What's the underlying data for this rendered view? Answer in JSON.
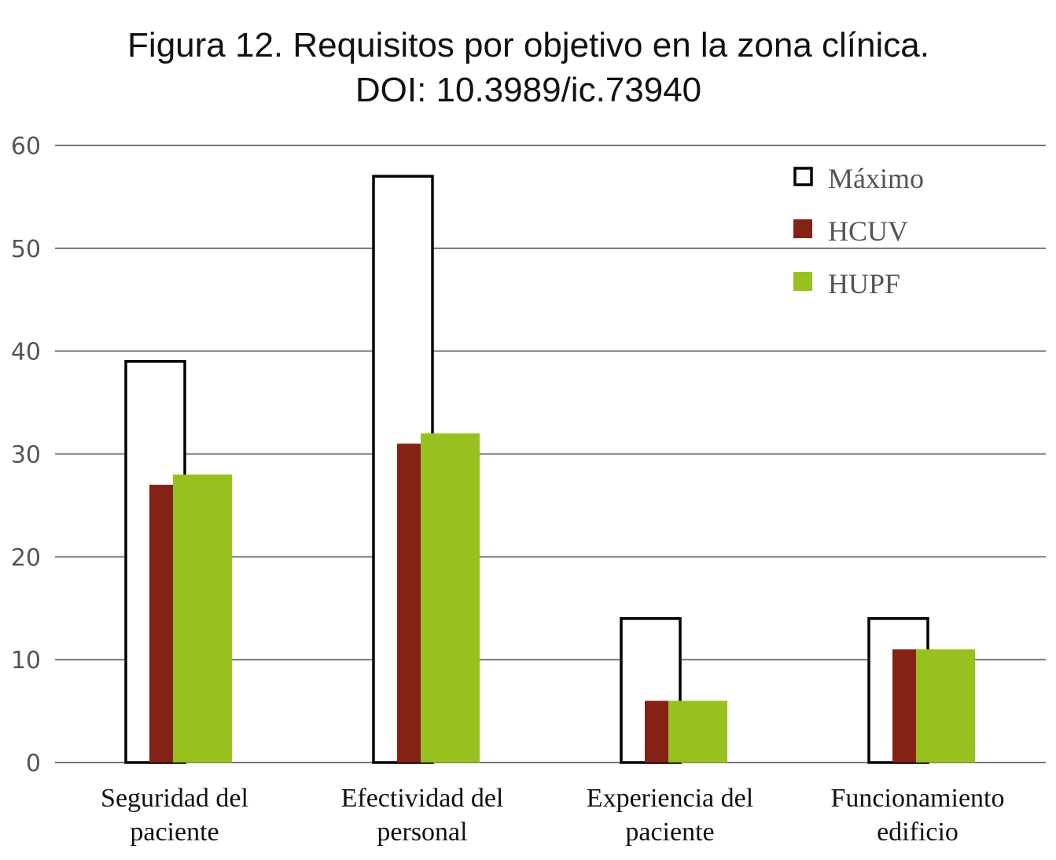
{
  "chart_data": {
    "type": "bar",
    "title": "Figura 12. Requisitos por objetivo en la zona clínica.",
    "subtitle": "DOI: 10.3989/ic.73940",
    "categories": [
      [
        "Seguridad del",
        "paciente"
      ],
      [
        "Efectividad del",
        "personal"
      ],
      [
        "Experiencia del",
        "paciente"
      ],
      [
        "Funcionamiento",
        "edificio"
      ]
    ],
    "series": [
      {
        "name": "Máximo",
        "values": [
          39,
          57,
          14,
          14
        ],
        "color": "#ffffff",
        "stroke": "#000000"
      },
      {
        "name": "HCUV",
        "values": [
          27,
          31,
          6,
          11
        ],
        "color": "#842216"
      },
      {
        "name": "HUPF",
        "values": [
          28,
          32,
          6,
          11
        ],
        "color": "#96c11f"
      }
    ],
    "y_ticks": [
      0,
      10,
      20,
      30,
      40,
      50,
      60
    ],
    "ylim": [
      0,
      60
    ],
    "grid": true,
    "legend_position": "top-right"
  }
}
